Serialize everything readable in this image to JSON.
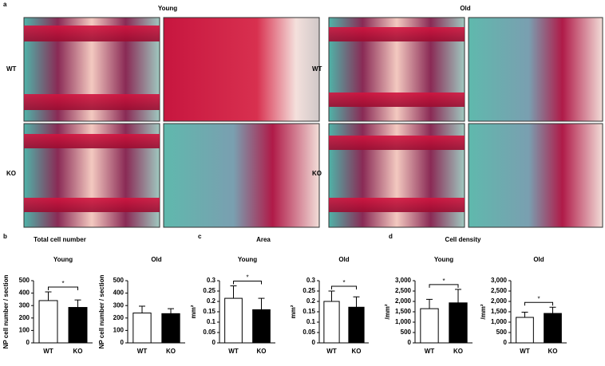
{
  "figure": {
    "panel_a": "a",
    "col_headers": [
      "Young",
      "Old"
    ],
    "row_labels": [
      "WT",
      "KO",
      "WT",
      "KO"
    ]
  },
  "panels": [
    {
      "label": "b",
      "title": "Total cell number"
    },
    {
      "label": "c",
      "title": "Area"
    },
    {
      "label": "d",
      "title": "Cell density"
    }
  ],
  "chart_data": [
    {
      "type": "bar",
      "title": "Young",
      "ylabel": "NP cell number / section",
      "categories": [
        "WT",
        "KO"
      ],
      "values": [
        340,
        285
      ],
      "errors": [
        70,
        60
      ],
      "colors": [
        "#ffffff",
        "#000000"
      ],
      "ylim": [
        0,
        500
      ],
      "yticks": [
        0,
        100,
        200,
        300,
        400,
        500
      ],
      "annotation": "*"
    },
    {
      "type": "bar",
      "title": "Old",
      "ylabel": "NP cell number / section",
      "categories": [
        "WT",
        "KO"
      ],
      "values": [
        240,
        235
      ],
      "errors": [
        55,
        40
      ],
      "colors": [
        "#ffffff",
        "#000000"
      ],
      "ylim": [
        0,
        500
      ],
      "yticks": [
        0,
        100,
        200,
        300,
        400,
        500
      ]
    },
    {
      "type": "bar",
      "title": "Young",
      "ylabel": "mm²",
      "categories": [
        "WT",
        "KO"
      ],
      "values": [
        0.215,
        0.16
      ],
      "errors": [
        0.06,
        0.055
      ],
      "colors": [
        "#ffffff",
        "#000000"
      ],
      "ylim": [
        0,
        0.3
      ],
      "yticks": [
        0,
        0.05,
        0.1,
        0.15,
        0.2,
        0.25,
        0.3
      ],
      "annotation": "*"
    },
    {
      "type": "bar",
      "title": "Old",
      "ylabel": "mm²",
      "categories": [
        "WT",
        "KO"
      ],
      "values": [
        0.2,
        0.172
      ],
      "errors": [
        0.05,
        0.05
      ],
      "colors": [
        "#ffffff",
        "#000000"
      ],
      "ylim": [
        0,
        0.3
      ],
      "yticks": [
        0,
        0.05,
        0.1,
        0.15,
        0.2,
        0.25,
        0.3
      ],
      "annotation": "*"
    },
    {
      "type": "bar",
      "title": "Young",
      "ylabel": "/mm²",
      "categories": [
        "WT",
        "KO"
      ],
      "values": [
        1650,
        1930
      ],
      "errors": [
        450,
        650
      ],
      "colors": [
        "#ffffff",
        "#000000"
      ],
      "ylim": [
        0,
        3000
      ],
      "yticks": [
        0,
        500,
        {
          "value": 1000,
          "label": "1,000"
        },
        {
          "value": 1500,
          "label": "1,500"
        },
        {
          "value": 2000,
          "label": "2,000"
        },
        {
          "value": 2500,
          "label": "2,500"
        },
        {
          "value": 3000,
          "label": "3,000"
        }
      ],
      "annotation": "*"
    },
    {
      "type": "bar",
      "title": "Old",
      "ylabel": "/mm²",
      "categories": [
        "WT",
        "KO"
      ],
      "values": [
        1230,
        1420
      ],
      "errors": [
        250,
        300
      ],
      "colors": [
        "#ffffff",
        "#000000"
      ],
      "ylim": [
        0,
        3000
      ],
      "yticks": [
        0,
        500,
        {
          "value": 1000,
          "label": "1,000"
        },
        {
          "value": 1500,
          "label": "1,500"
        },
        {
          "value": 2000,
          "label": "2,000"
        },
        {
          "value": 2500,
          "label": "2,500"
        },
        {
          "value": 3000,
          "label": "3,000"
        }
      ],
      "annotation": "*"
    }
  ]
}
